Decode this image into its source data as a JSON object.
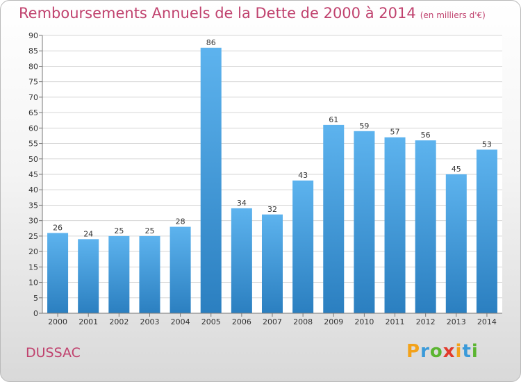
{
  "title": "Remboursements Annuels de la Dette de 2000 à 2014",
  "unit": "(en milliers d'€)",
  "city": "DUSSAC",
  "logo": {
    "text": "Proxiti",
    "letters": [
      {
        "ch": "P",
        "color": "#f3a21a"
      },
      {
        "ch": "r",
        "color": "#3a9ad9"
      },
      {
        "ch": "o",
        "color": "#5bb531"
      },
      {
        "ch": "x",
        "color": "#e23a2b"
      },
      {
        "ch": "i",
        "color": "#f3a21a"
      },
      {
        "ch": "t",
        "color": "#3a9ad9"
      },
      {
        "ch": "i",
        "color": "#5bb531"
      }
    ]
  },
  "colors": {
    "title": "#c0426e",
    "bar_top": "#5db3ee",
    "bar_bottom": "#2b7fc0",
    "grid": "#d6d6d6"
  },
  "chart_data": {
    "type": "bar",
    "categories": [
      "2000",
      "2001",
      "2002",
      "2003",
      "2004",
      "2005",
      "2006",
      "2007",
      "2008",
      "2009",
      "2010",
      "2011",
      "2012",
      "2013",
      "2014"
    ],
    "values": [
      26,
      24,
      25,
      25,
      28,
      86,
      34,
      32,
      43,
      61,
      59,
      57,
      56,
      45,
      53
    ],
    "ylim": [
      0,
      90
    ],
    "yticks": [
      0,
      5,
      10,
      15,
      20,
      25,
      30,
      35,
      40,
      45,
      50,
      55,
      60,
      65,
      70,
      75,
      80,
      85,
      90
    ],
    "grid": true
  }
}
